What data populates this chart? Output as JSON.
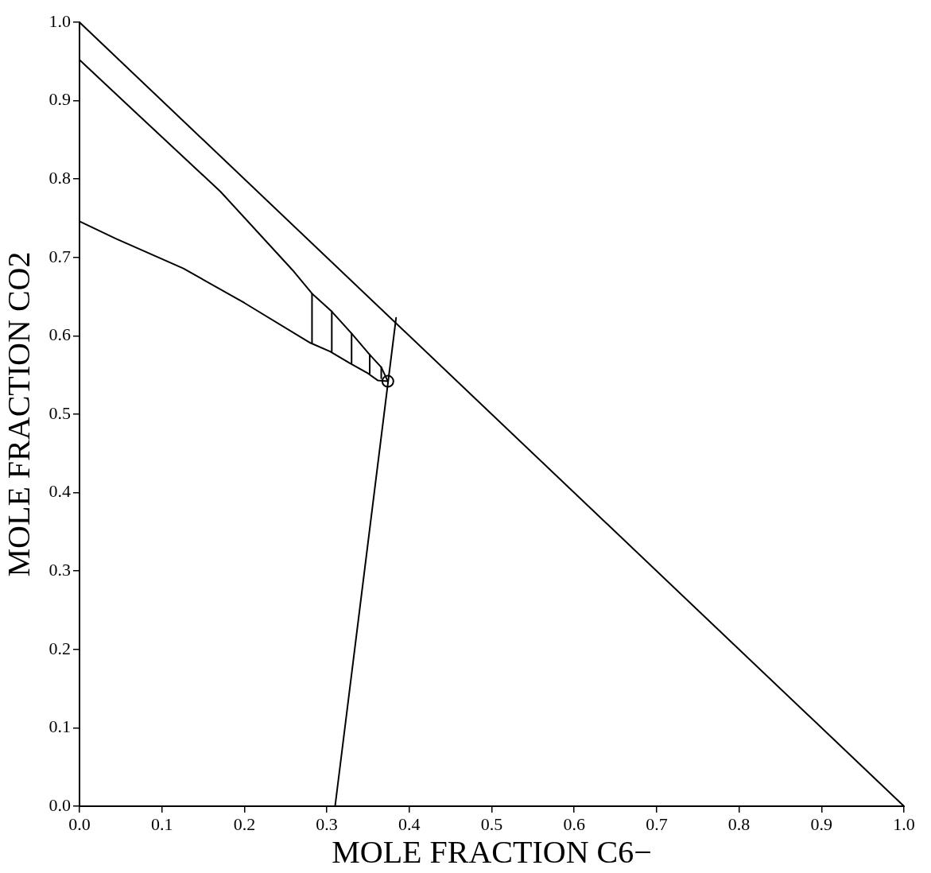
{
  "chart_data": {
    "type": "line",
    "xlabel": "MOLE FRACTION C6−",
    "ylabel": "MOLE FRACTION CO2",
    "xlim": [
      0,
      1
    ],
    "ylim": [
      0,
      1
    ],
    "xticks": [
      {
        "value": 0,
        "label": "0.0"
      },
      {
        "value": 0.1,
        "label": "0.1"
      },
      {
        "value": 0.2,
        "label": "0.2"
      },
      {
        "value": 0.3,
        "label": "0.3"
      },
      {
        "value": 0.4,
        "label": "0.4"
      },
      {
        "value": 0.5,
        "label": "0.5"
      },
      {
        "value": 0.6,
        "label": "0.6"
      },
      {
        "value": 0.7,
        "label": "0.7"
      },
      {
        "value": 0.8,
        "label": "0.8"
      },
      {
        "value": 0.9,
        "label": "0.9"
      },
      {
        "value": 1,
        "label": "1.0"
      }
    ],
    "yticks": [
      {
        "value": 0,
        "label": "0.0"
      },
      {
        "value": 0.1,
        "label": "0.1"
      },
      {
        "value": 0.2,
        "label": "0.2"
      },
      {
        "value": 0.3,
        "label": "0.3"
      },
      {
        "value": 0.4,
        "label": "0.4"
      },
      {
        "value": 0.5,
        "label": "0.5"
      },
      {
        "value": 0.6,
        "label": "0.6"
      },
      {
        "value": 0.7,
        "label": "0.7"
      },
      {
        "value": 0.8,
        "label": "0.8"
      },
      {
        "value": 0.9,
        "label": "0.9"
      },
      {
        "value": 1,
        "label": "1.0"
      }
    ],
    "grid": false,
    "legend": false,
    "marker": "none",
    "line_style": "solid",
    "series": [
      {
        "color": "#000000",
        "x": [
          0,
          1
        ],
        "values": [
          1,
          0
        ]
      },
      {
        "color": "#000000",
        "x": [
          0,
          0.063,
          0.171,
          0.26,
          0.282,
          0.306,
          0.33,
          0.352,
          0.366,
          0.374
        ],
        "values": [
          0.952,
          0.89,
          0.784,
          0.682,
          0.654,
          0.631,
          0.603,
          0.576,
          0.56,
          0.542
        ]
      },
      {
        "color": "#000000",
        "x": [
          0,
          0.044,
          0.126,
          0.2,
          0.28,
          0.304,
          0.328,
          0.35,
          0.362,
          0.374
        ],
        "values": [
          0.746,
          0.724,
          0.686,
          0.642,
          0.591,
          0.58,
          0.565,
          0.552,
          0.543,
          0.542
        ]
      },
      {
        "color": "#000000",
        "x": [
          0.282,
          0.282
        ],
        "values": [
          0.591,
          0.654
        ]
      },
      {
        "color": "#000000",
        "x": [
          0.306,
          0.306
        ],
        "values": [
          0.58,
          0.631
        ]
      },
      {
        "color": "#000000",
        "x": [
          0.33,
          0.33
        ],
        "values": [
          0.565,
          0.603
        ]
      },
      {
        "color": "#000000",
        "x": [
          0.352,
          0.352
        ],
        "values": [
          0.552,
          0.576
        ]
      },
      {
        "color": "#000000",
        "x": [
          0.366,
          0.366
        ],
        "values": [
          0.546,
          0.56
        ]
      },
      {
        "color": "#000000",
        "x": [
          0.31,
          0.384
        ],
        "values": [
          0,
          0.623
        ]
      },
      {
        "type": "scatter",
        "marker": "circle",
        "color": "#000000",
        "x": [
          0.374
        ],
        "values": [
          0.542
        ]
      }
    ]
  }
}
